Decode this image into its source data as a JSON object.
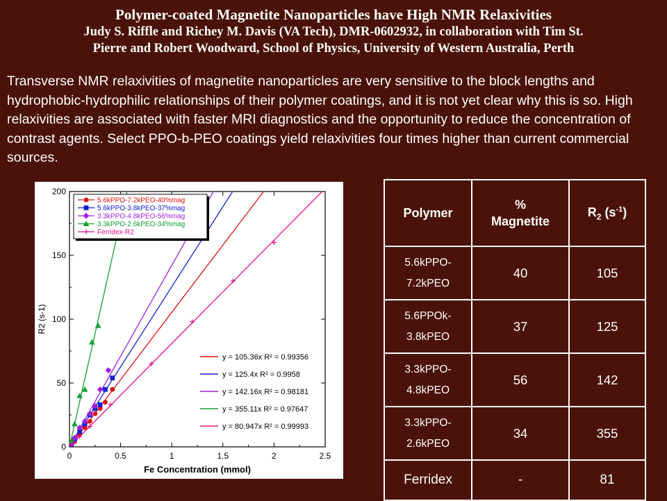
{
  "header": {
    "title": "Polymer-coated Magnetite Nanoparticles have High NMR Relaxivities",
    "authors_line1": "Judy S. Riffle and Richey M. Davis (VA Tech), DMR-0602932, in collaboration with Tim St.",
    "authors_line2": "Pierre and Robert Woodward, School of Physics, University of Western Australia, Perth"
  },
  "paragraph": "Transverse NMR relaxivities of magnetite nanoparticles are very sensitive to the block lengths and hydrophobic-hydrophilic relationships of their polymer coatings, and it is not yet clear why this is so.  High relaxivities are associated with faster MRI diagnostics and the opportunity to reduce the concentration of contrast agents.  Select PPO-b-PEO coatings yield relaxivities four times higher than current commercial sources.",
  "chart_data": {
    "type": "scatter",
    "xlabel": "Fe Concentration (mmol)",
    "ylabel": "R2 (s-1)",
    "xlim": [
      0,
      2.5
    ],
    "ylim": [
      0,
      200
    ],
    "xticks": [
      "0",
      "0.5",
      "1",
      "1.5",
      "2",
      "2.5"
    ],
    "yticks": [
      "0",
      "50",
      "100",
      "150",
      "200"
    ],
    "grid": false,
    "legend_position": "top-left",
    "series": [
      {
        "name": "5.6kPPO-7.2kPEO-40%mag",
        "color": "#dd1010",
        "marker": "circle",
        "slope": 105.36,
        "fit_label": "y = 105.36x   R² = 0.99356",
        "x": [
          0.02,
          0.05,
          0.1,
          0.15,
          0.2,
          0.25,
          0.3,
          0.35,
          0.42
        ],
        "y": [
          2,
          4,
          10,
          15,
          20,
          26,
          30,
          35,
          45
        ]
      },
      {
        "name": "5.6kPPO-3.8kPEO-37%mag",
        "color": "#1020d0",
        "marker": "square",
        "slope": 125.4,
        "fit_label": "y = 125.4x   R² = 0.9958",
        "x": [
          0.02,
          0.05,
          0.1,
          0.15,
          0.2,
          0.25,
          0.3,
          0.35,
          0.42
        ],
        "y": [
          2,
          6,
          12,
          18,
          25,
          30,
          33,
          45,
          54
        ]
      },
      {
        "name": "3.3kPPO-4.8kPEO-56%mag",
        "color": "#a020e0",
        "marker": "diamond",
        "slope": 142.16,
        "fit_label": "y = 142.16x   R² = 0.98181",
        "x": [
          0.02,
          0.05,
          0.1,
          0.15,
          0.2,
          0.25,
          0.3,
          0.38
        ],
        "y": [
          3,
          7,
          15,
          20,
          26,
          32,
          45,
          60
        ]
      },
      {
        "name": "3.3kPPO-2.6kPEO-34%mag",
        "color": "#10a030",
        "marker": "triangle",
        "slope": 355.11,
        "fit_label": "y = 355.11x   R² = 0.97647",
        "x": [
          0.02,
          0.05,
          0.1,
          0.15,
          0.22,
          0.28
        ],
        "y": [
          5,
          18,
          40,
          45,
          82,
          95
        ]
      },
      {
        "name": "Ferridex-R2",
        "color": "#e0108a",
        "marker": "plus",
        "slope": 80.947,
        "fit_label": "y = 80.947x   R² = 0.99993",
        "x": [
          0.02,
          0.05,
          0.1,
          0.2,
          0.4,
          0.8,
          1.2,
          1.6,
          2.0
        ],
        "y": [
          1,
          4,
          8,
          16,
          33,
          65,
          98,
          130,
          160
        ]
      }
    ]
  },
  "table": {
    "headers": [
      "Polymer",
      "% Magnetite",
      "R2 (s-1)"
    ],
    "rows": [
      {
        "polymer_a": "5.6kPPO-",
        "polymer_b": "7.2kPEO",
        "magnetite": "40",
        "r2": "105"
      },
      {
        "polymer_a": "5.6PPOk-",
        "polymer_b": "3.8kPEO",
        "magnetite": "37",
        "r2": "125"
      },
      {
        "polymer_a": "3.3kPPO-",
        "polymer_b": "4.8kPEO",
        "magnetite": "56",
        "r2": "142"
      },
      {
        "polymer_a": "3.3kPPO-",
        "polymer_b": "2.6kPEO",
        "magnetite": "34",
        "r2": "355"
      },
      {
        "polymer": "Ferridex",
        "magnetite": "-",
        "r2": "81"
      }
    ]
  }
}
